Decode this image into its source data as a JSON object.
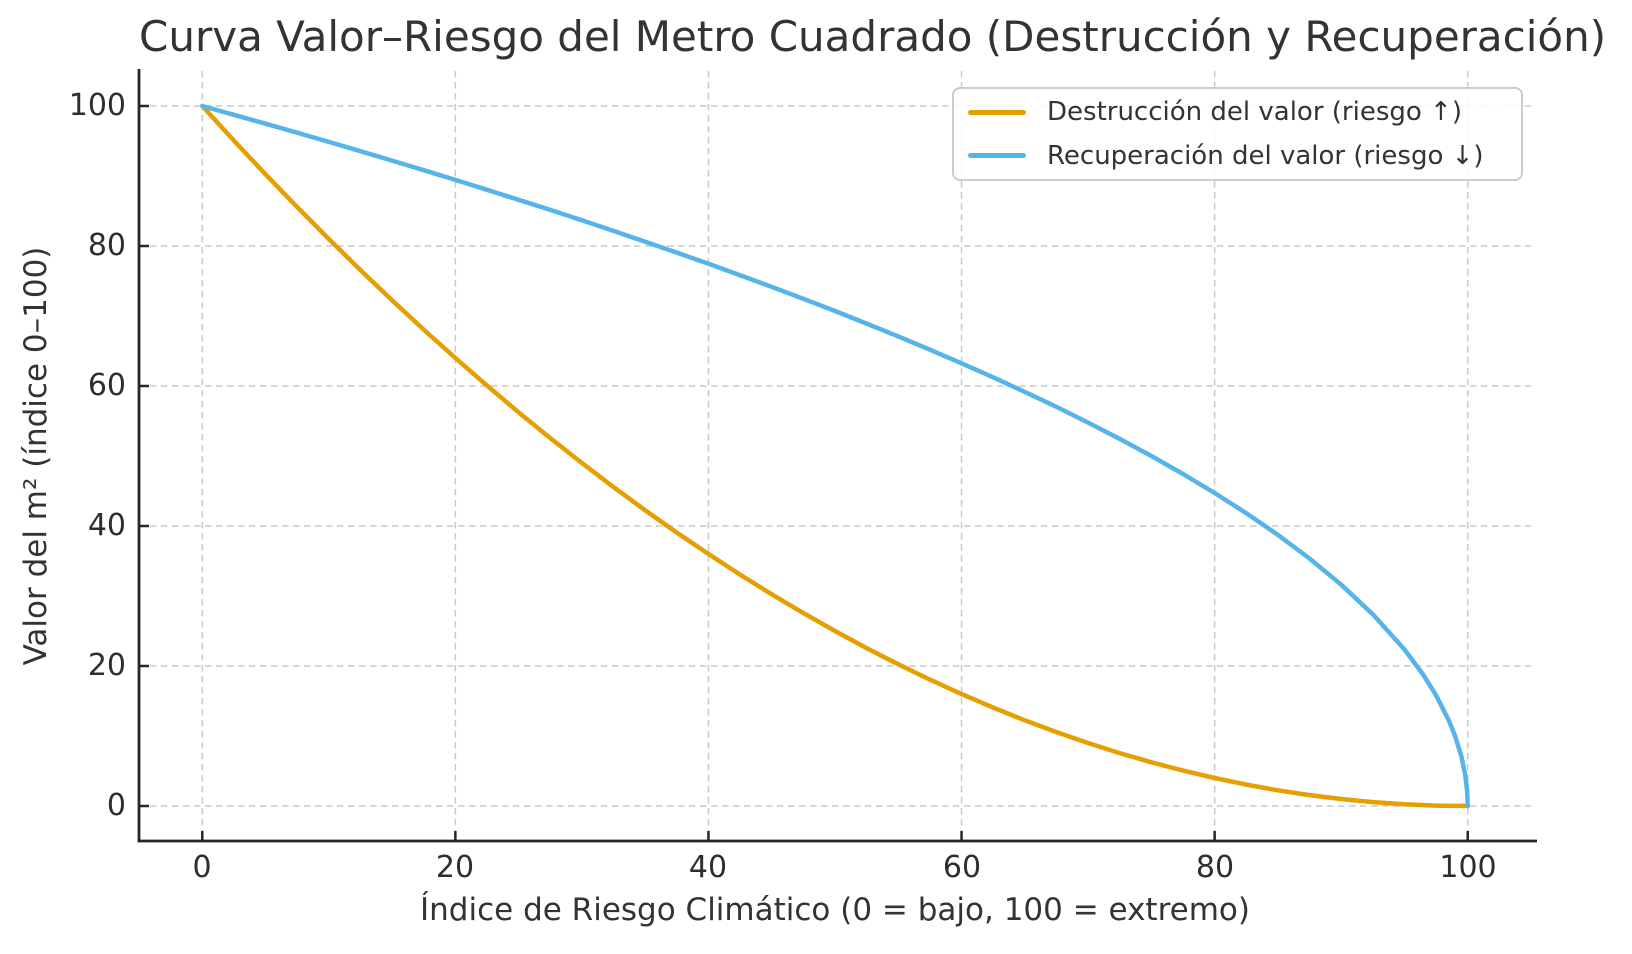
{
  "figure": {
    "background": "#ffffff",
    "text_color": "#333333",
    "tick_text_color": "#2e2e2e",
    "spine_color": "#262626",
    "grid_color": "#c9c9c9",
    "legend_border_color": "#cccccc"
  },
  "chart_data": {
    "type": "line",
    "title": "Curva Valor–Riesgo del Metro Cuadrado (Destrucción y Recuperación)",
    "xlabel": "Índice de Riesgo Climático (0 = bajo, 100 = extremo)",
    "ylabel": "Valor del m² (índice 0–100)",
    "xlim": [
      -5,
      105
    ],
    "ylim": [
      -5,
      105
    ],
    "xticks": [
      0,
      20,
      40,
      60,
      80,
      100
    ],
    "yticks": [
      0,
      20,
      40,
      60,
      80,
      100
    ],
    "grid": true,
    "grid_style": "dashed",
    "legend_position": "upper right",
    "series": [
      {
        "name": "Destrucción del valor (riesgo ↑)",
        "color": "#E69F00",
        "x": [
          0,
          2.5,
          5,
          7.5,
          10,
          12.5,
          15,
          17.5,
          20,
          22.5,
          25,
          27.5,
          30,
          32.5,
          35,
          37.5,
          40,
          42.5,
          45,
          47.5,
          50,
          52.5,
          55,
          57.5,
          60,
          62.5,
          65,
          67.5,
          70,
          72.5,
          75,
          77.5,
          80,
          82.5,
          85,
          87.5,
          90,
          92.5,
          95,
          97.5,
          100
        ],
        "y": [
          100,
          95.06,
          90.25,
          85.56,
          81,
          76.56,
          72.25,
          68.06,
          64,
          60.06,
          56.25,
          52.56,
          49,
          45.56,
          42.25,
          39.06,
          36,
          33.06,
          30.25,
          27.56,
          25,
          22.56,
          20.25,
          18.06,
          16,
          14.06,
          12.25,
          10.56,
          9,
          7.56,
          6.25,
          5.06,
          4,
          3.06,
          2.25,
          1.56,
          1,
          0.56,
          0.25,
          0.06,
          0
        ]
      },
      {
        "name": "Recuperación del valor (riesgo ↓)",
        "color": "#56B4E9",
        "x": [
          0,
          2.5,
          5,
          7.5,
          10,
          12.5,
          15,
          17.5,
          20,
          22.5,
          25,
          27.5,
          30,
          32.5,
          35,
          37.5,
          40,
          42.5,
          45,
          47.5,
          50,
          52.5,
          55,
          57.5,
          60,
          62.5,
          65,
          67.5,
          70,
          72.5,
          75,
          77.5,
          80,
          82.5,
          85,
          87.5,
          90,
          92.5,
          95,
          96.5,
          97.5,
          98.5,
          99,
          99.5,
          99.8,
          99.95,
          100
        ],
        "y": [
          100,
          98.74,
          97.47,
          96.18,
          94.87,
          93.54,
          92.2,
          90.83,
          89.44,
          88.03,
          86.6,
          85.15,
          83.67,
          82.16,
          80.62,
          79.06,
          77.46,
          75.83,
          74.16,
          72.46,
          70.71,
          68.92,
          67.08,
          65.19,
          63.25,
          61.24,
          59.16,
          57.01,
          54.77,
          52.44,
          50,
          47.43,
          44.72,
          41.83,
          38.73,
          35.36,
          31.62,
          27.39,
          22.36,
          18.71,
          15.81,
          12.25,
          10,
          7.07,
          4.47,
          2.24,
          0
        ]
      }
    ]
  }
}
